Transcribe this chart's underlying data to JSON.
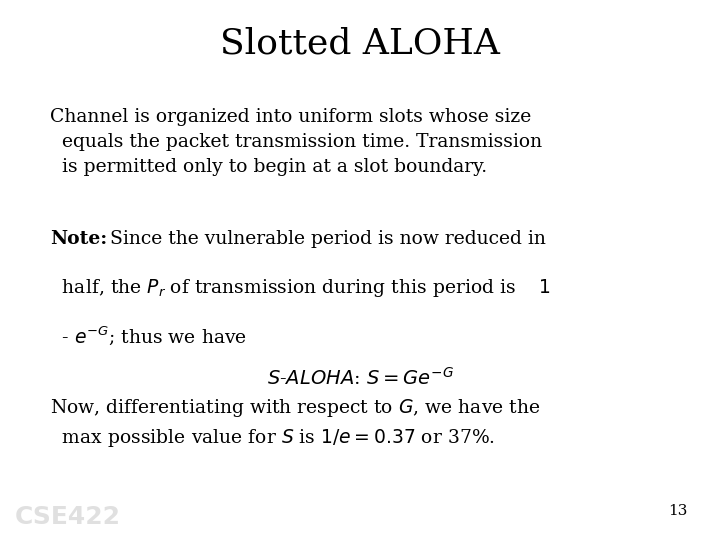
{
  "title": "Slotted ALOHA",
  "background_color": "#ffffff",
  "text_color": "#000000",
  "title_fontsize": 26,
  "body_fontsize": 13.5,
  "page_number": "13",
  "watermark": "CSE422",
  "watermark_color": "#cccccc",
  "watermark_fontsize": 18
}
